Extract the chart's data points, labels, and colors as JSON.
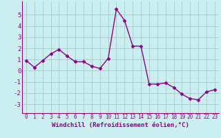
{
  "x": [
    0,
    1,
    2,
    3,
    4,
    5,
    6,
    7,
    8,
    9,
    10,
    11,
    12,
    13,
    14,
    15,
    16,
    17,
    18,
    19,
    20,
    21,
    22,
    23
  ],
  "y": [
    0.9,
    0.3,
    0.9,
    1.5,
    1.9,
    1.3,
    0.8,
    0.8,
    0.4,
    0.2,
    1.1,
    5.5,
    4.5,
    2.2,
    2.2,
    -1.2,
    -1.2,
    -1.1,
    -1.5,
    -2.1,
    -2.5,
    -2.6,
    -1.9,
    -1.7
  ],
  "line_color": "#880088",
  "marker": "D",
  "markersize": 2.5,
  "linewidth": 1.0,
  "bg_color": "#cceeee",
  "grid_color": "#aacccc",
  "xlabel": "Windchill (Refroidissement éolien,°C)",
  "xlabel_fontsize": 6.5,
  "xtick_fontsize": 5.5,
  "ytick_fontsize": 6.5,
  "ylim": [
    -3.8,
    6.2
  ],
  "xlim": [
    -0.5,
    23.5
  ],
  "yticks": [
    -3,
    -2,
    -1,
    0,
    1,
    2,
    3,
    4,
    5
  ],
  "xticks": [
    0,
    1,
    2,
    3,
    4,
    5,
    6,
    7,
    8,
    9,
    10,
    11,
    12,
    13,
    14,
    15,
    16,
    17,
    18,
    19,
    20,
    21,
    22,
    23
  ]
}
